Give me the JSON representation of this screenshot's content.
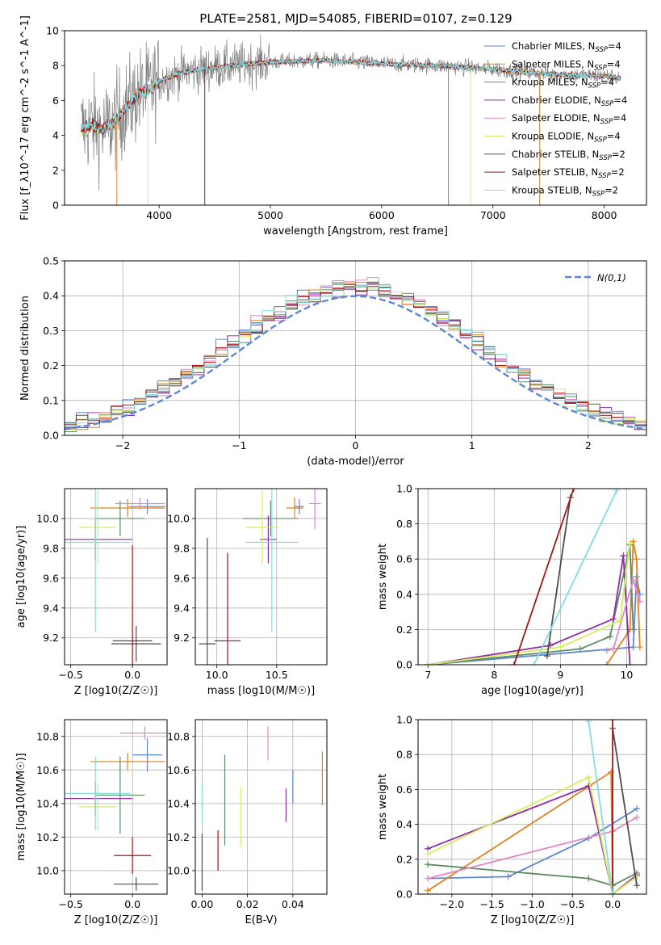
{
  "colors": [
    "#5e85d6",
    "#e0801e",
    "#5d8c61",
    "#8f2da8",
    "#e287c2",
    "#d6ee5e",
    "#4d4d4d",
    "#a61414",
    "#83dde0"
  ],
  "chart_data": [
    {
      "id": "spectrum",
      "type": "line",
      "title": "PLATE=2581, MJD=54085, FIBERID=0107, z=0.129",
      "xlabel": "wavelength [Angstrom, rest frame]",
      "ylabel": "Flux [f_λ10^-17 erg cm^-2 s^-1 A^-1]",
      "xlim": [
        3150,
        8380
      ],
      "ylim": [
        0,
        10
      ],
      "xticks": [
        4000,
        5000,
        6000,
        7000,
        8000
      ],
      "yticks": [
        0,
        2,
        4,
        6,
        8,
        10
      ],
      "legend_position": "top-right",
      "legend": [
        "Chabrier MILES, N_SSP=4",
        "Salpeter MILES, N_SSP=4",
        "Kroupa MILES, N_SSP=4",
        "Chabrier ELODIE, N_SSP=4",
        "Salpeter ELODIE, N_SSP=4",
        "Kroupa ELODIE, N_SSP=4",
        "Chabrier STELIB, N_SSP=2",
        "Salpeter STELIB, N_SSP=2",
        "Kroupa STELIB, N_SSP=2"
      ],
      "data_color": "#808080",
      "continuum": {
        "x": [
          3300,
          3400,
          3500,
          3600,
          3700,
          3800,
          3900,
          4000,
          4200,
          4500,
          5000,
          5500,
          6000,
          6500,
          7000,
          7500,
          8000,
          8150
        ],
        "y": [
          4.4,
          4.6,
          4.3,
          4.8,
          5.6,
          6.3,
          6.6,
          7.1,
          7.6,
          7.9,
          8.2,
          8.3,
          8.1,
          8.0,
          7.8,
          7.5,
          7.4,
          7.3
        ]
      },
      "data_x_range": [
        3300,
        8150
      ],
      "dips": [
        {
          "x": 3620,
          "color": "#e0801e",
          "to": 0
        },
        {
          "x": 3900,
          "color": "#d6ee5e",
          "to": 0
        },
        {
          "x": 4410,
          "color": "#a61414",
          "to": 0
        },
        {
          "x": 6600,
          "color": "#808080",
          "to": 0
        },
        {
          "x": 6800,
          "color": "#d6ee5e",
          "to": 0
        },
        {
          "x": 7420,
          "color": "#e0801e",
          "to": 0
        }
      ]
    },
    {
      "id": "residuals",
      "type": "histogram",
      "xlabel": "(data-model)/error",
      "ylabel": "Normed distribution",
      "xlim": [
        -2.5,
        2.5
      ],
      "ylim": [
        0,
        0.5
      ],
      "xticks": [
        -2,
        -1,
        0,
        1,
        2
      ],
      "yticks": [
        0.0,
        0.1,
        0.2,
        0.3,
        0.4,
        0.5
      ],
      "bin_width": 0.1,
      "model_label": "N(0,1)",
      "model_color": "#5e85d6",
      "legend_position": "top-right"
    },
    {
      "id": "age_vs_Z",
      "type": "scatter",
      "xlabel": "Z [log10(Z/Z☉)]",
      "ylabel": "age [log10(age/yr)]",
      "xlim": [
        -0.55,
        0.28
      ],
      "ylim": [
        9.02,
        10.2
      ],
      "xticks": [
        -0.5,
        0.0
      ],
      "yticks": [
        9.2,
        9.4,
        9.6,
        9.8,
        10.0
      ],
      "points": [
        {
          "x": 0.12,
          "y": 10.08,
          "xerr": 0.15,
          "yerr": 0.05,
          "series": 0
        },
        {
          "x": -0.04,
          "y": 10.07,
          "xerr": 0.3,
          "yerr": 0.06,
          "series": 1
        },
        {
          "x": -0.1,
          "y": 10.0,
          "xerr": 0.2,
          "yerr": 0.12,
          "series": 2
        },
        {
          "x": -0.3,
          "y": 9.86,
          "xerr": 0.3,
          "yerr": 0.14,
          "series": 3
        },
        {
          "x": 0.06,
          "y": 10.1,
          "xerr": 0.2,
          "yerr": 0.04,
          "series": 4
        },
        {
          "x": -0.28,
          "y": 9.94,
          "xerr": 0.15,
          "yerr": 0.25,
          "series": 5
        },
        {
          "x": 0.03,
          "y": 9.16,
          "xerr": 0.2,
          "yerr": 0.12,
          "series": 6
        },
        {
          "x": 0.0,
          "y": 9.18,
          "xerr": 0.16,
          "yerr": 0.64,
          "series": 7
        },
        {
          "x": -0.3,
          "y": 9.84,
          "xerr": 0.28,
          "yerr": 0.6,
          "series": 8
        }
      ]
    },
    {
      "id": "age_vs_mass",
      "type": "scatter",
      "xlabel": "mass [log10(M/M☉)]",
      "ylabel": "",
      "xlim": [
        9.82,
        10.92
      ],
      "ylim": [
        9.02,
        10.2
      ],
      "xticks": [
        10.0,
        10.5
      ],
      "yticks": [
        9.2,
        9.4,
        9.6,
        9.8,
        10.0
      ],
      "points": [
        {
          "x": 10.69,
          "y": 10.08,
          "xerr": 0.04,
          "yerr": 0.05,
          "series": 0
        },
        {
          "x": 10.65,
          "y": 10.07,
          "xerr": 0.07,
          "yerr": 0.07,
          "series": 1
        },
        {
          "x": 10.45,
          "y": 10.0,
          "xerr": 0.23,
          "yerr": 0.12,
          "series": 2
        },
        {
          "x": 10.43,
          "y": 9.86,
          "xerr": 0.07,
          "yerr": 0.16,
          "series": 3
        },
        {
          "x": 10.82,
          "y": 10.1,
          "xerr": 0.05,
          "yerr": 0.17,
          "series": 4
        },
        {
          "x": 10.38,
          "y": 9.94,
          "xerr": 0.14,
          "yerr": 0.25,
          "series": 5
        },
        {
          "x": 9.92,
          "y": 9.16,
          "xerr": 0.07,
          "yerr": 0.71,
          "series": 6
        },
        {
          "x": 10.09,
          "y": 9.18,
          "xerr": 0.11,
          "yerr": 0.59,
          "series": 7
        },
        {
          "x": 10.46,
          "y": 9.84,
          "xerr": 0.22,
          "yerr": 0.6,
          "series": 8
        }
      ]
    },
    {
      "id": "massweight_vs_age",
      "type": "line",
      "xlabel": "age [log10(age/yr)]",
      "ylabel": "mass weight",
      "xlim": [
        6.85,
        10.3
      ],
      "ylim": [
        0,
        1
      ],
      "xticks": [
        7,
        8,
        9,
        10
      ],
      "yticks": [
        0.0,
        0.2,
        0.4,
        0.6,
        0.8,
        1.0
      ],
      "series": [
        {
          "x": [
            7.0,
            9.8,
            10.1,
            10.15,
            10.2
          ],
          "y": [
            0.0,
            0.09,
            0.1,
            0.5,
            0.4
          ],
          "color": 0
        },
        {
          "x": [
            9.7,
            10.05,
            10.1,
            10.15,
            10.2
          ],
          "y": [
            0.0,
            0.2,
            0.7,
            0.6,
            0.1
          ],
          "color": 1
        },
        {
          "x": [
            7.0,
            9.3,
            9.75,
            10.05,
            10.1
          ],
          "y": [
            0.0,
            0.09,
            0.16,
            0.68,
            0.2
          ],
          "color": 2
        },
        {
          "x": [
            7.0,
            8.85,
            9.8,
            9.95,
            10.05
          ],
          "y": [
            0.0,
            0.11,
            0.26,
            0.62,
            0.0
          ],
          "color": 3
        },
        {
          "x": [
            9.7,
            9.8,
            10.1,
            10.2
          ],
          "y": [
            0.08,
            0.09,
            0.48,
            0.36
          ],
          "color": 4
        },
        {
          "x": [
            7.0,
            9.0,
            9.9,
            10.05
          ],
          "y": [
            0.0,
            0.1,
            0.25,
            0.69
          ],
          "color": 5
        },
        {
          "x": [
            8.8,
            9.15
          ],
          "y": [
            0.05,
            0.95
          ],
          "color": 6
        },
        {
          "x": [
            8.3,
            9.2
          ],
          "y": [
            0.0,
            1.0
          ],
          "color": 7
        },
        {
          "x": [
            8.6,
            9.85
          ],
          "y": [
            0.0,
            0.99
          ],
          "color": 8
        }
      ]
    },
    {
      "id": "mass_vs_Z",
      "type": "scatter",
      "xlabel": "Z [log10(Z/Z☉)]",
      "ylabel": "mass [log10(M/M☉)]",
      "xlim": [
        -0.55,
        0.28
      ],
      "ylim": [
        9.86,
        10.9
      ],
      "xticks": [
        -0.5,
        0.0
      ],
      "yticks": [
        10.0,
        10.2,
        10.4,
        10.6,
        10.8
      ],
      "points": [
        {
          "x": 0.12,
          "y": 10.69,
          "xerr": 0.12,
          "yerr": 0.1,
          "series": 0
        },
        {
          "x": -0.04,
          "y": 10.65,
          "xerr": 0.3,
          "yerr": 0.05,
          "series": 1
        },
        {
          "x": -0.1,
          "y": 10.45,
          "xerr": 0.2,
          "yerr": 0.23,
          "series": 2
        },
        {
          "x": -0.3,
          "y": 10.43,
          "xerr": 0.3,
          "yerr": 0.1,
          "series": 3
        },
        {
          "x": 0.1,
          "y": 10.82,
          "xerr": 0.2,
          "yerr": 0.04,
          "series": 4
        },
        {
          "x": -0.28,
          "y": 10.38,
          "xerr": 0.15,
          "yerr": 0.14,
          "series": 5
        },
        {
          "x": 0.03,
          "y": 9.92,
          "xerr": 0.18,
          "yerr": 0.04,
          "series": 6
        },
        {
          "x": 0.0,
          "y": 10.09,
          "xerr": 0.15,
          "yerr": 0.11,
          "series": 7
        },
        {
          "x": -0.3,
          "y": 10.46,
          "xerr": 0.28,
          "yerr": 0.22,
          "series": 8
        }
      ]
    },
    {
      "id": "mass_vs_ebv",
      "type": "scatter",
      "xlabel": "E(B-V)",
      "ylabel": "",
      "xlim": [
        -0.003,
        0.055
      ],
      "ylim": [
        9.86,
        10.9
      ],
      "xticks": [
        0.0,
        0.02,
        0.04
      ],
      "yticks": [
        10.0,
        10.2,
        10.4,
        10.6,
        10.8
      ],
      "points": [
        {
          "x": 0.04,
          "y": 10.5,
          "xerr": 0,
          "yerr": 0.1,
          "series": 0
        },
        {
          "x": 0.053,
          "y": 10.55,
          "xerr": 0,
          "yerr": 0.16,
          "series": 1
        },
        {
          "x": 0.01,
          "y": 10.42,
          "xerr": 0,
          "yerr": 0.27,
          "series": 2
        },
        {
          "x": 0.037,
          "y": 10.39,
          "xerr": 0,
          "yerr": 0.1,
          "series": 3
        },
        {
          "x": 0.029,
          "y": 10.76,
          "xerr": 0,
          "yerr": 0.1,
          "series": 4
        },
        {
          "x": 0.017,
          "y": 10.32,
          "xerr": 0,
          "yerr": 0.18,
          "series": 5
        },
        {
          "x": 0.0,
          "y": 10.05,
          "xerr": 0,
          "yerr": 0.17,
          "series": 6
        },
        {
          "x": 0.007,
          "y": 10.12,
          "xerr": 0,
          "yerr": 0.12,
          "series": 7
        },
        {
          "x": 0.0,
          "y": 10.4,
          "xerr": 0,
          "yerr": 0.12,
          "series": 8
        }
      ]
    },
    {
      "id": "massweight_vs_Z",
      "type": "line",
      "xlabel": "Z [log10(Z/Z☉)]",
      "ylabel": "mass weight",
      "xlim": [
        -2.42,
        0.42
      ],
      "ylim": [
        0,
        1
      ],
      "xticks": [
        -2.0,
        -1.5,
        -1.0,
        -0.5,
        0.0
      ],
      "yticks": [
        0.0,
        0.2,
        0.4,
        0.6,
        0.8,
        1.0
      ],
      "series": [
        {
          "x": [
            -2.3,
            -1.3,
            -0.3,
            0.3
          ],
          "y": [
            0.09,
            0.1,
            0.32,
            0.49
          ],
          "color": 0
        },
        {
          "x": [
            -2.3,
            -0.02,
            0.0,
            0.3
          ],
          "y": [
            0.02,
            0.7,
            0.0,
            0.1
          ],
          "color": 1
        },
        {
          "x": [
            -2.3,
            -0.3,
            0.0,
            0.3
          ],
          "y": [
            0.17,
            0.09,
            0.05,
            0.12
          ],
          "color": 2
        },
        {
          "x": [
            -2.3,
            -0.3,
            0.0,
            0.3
          ],
          "y": [
            0.26,
            0.62,
            0.0,
            0.11
          ],
          "color": 3
        },
        {
          "x": [
            -2.3,
            0.0,
            0.3
          ],
          "y": [
            0.09,
            0.36,
            0.44
          ],
          "color": 4
        },
        {
          "x": [
            -2.3,
            -0.3,
            0.0,
            0.3
          ],
          "y": [
            0.23,
            0.67,
            0.0,
            0.1
          ],
          "color": 5
        },
        {
          "x": [
            0.0,
            0.3
          ],
          "y": [
            0.95,
            0.05
          ],
          "color": 6
        },
        {
          "x": [
            0.0,
            0.0
          ],
          "y": [
            0.0,
            1.0
          ],
          "color": 7
        },
        {
          "x": [
            -0.3,
            0.0
          ],
          "y": [
            0.99,
            0.0
          ],
          "color": 8
        }
      ]
    }
  ]
}
